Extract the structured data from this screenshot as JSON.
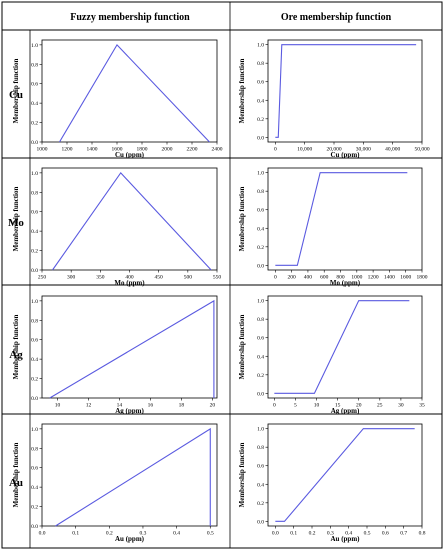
{
  "headers": {
    "fuzzy": "Fuzzy membership function",
    "ore": "Ore membership function"
  },
  "colors": {
    "line": "#5a5ae0",
    "border": "#000000",
    "divider": "#999999"
  },
  "chart_data": [
    {
      "row": "Cu",
      "panel": "fuzzy",
      "type": "line",
      "xlabel": "Cu (ppm)",
      "ylabel": "Membership function",
      "xlim": [
        1000,
        2400
      ],
      "ylim": [
        0,
        1.05
      ],
      "xticks": [
        1000,
        1200,
        1400,
        1600,
        1800,
        2000,
        2200,
        2400
      ],
      "xtick_labels": [
        "1000",
        "1200",
        "1400",
        "1600",
        "1800",
        "2000",
        "2200",
        "2400"
      ],
      "yticks": [
        0,
        0.2,
        0.4,
        0.6,
        0.8,
        1.0
      ],
      "ytick_labels": [
        "0.0",
        "0.2",
        "0.4",
        "0.6",
        "0.8",
        "1.0"
      ],
      "x": [
        1140,
        1600,
        2340
      ],
      "y": [
        0,
        1,
        0
      ]
    },
    {
      "row": "Cu",
      "panel": "ore",
      "type": "line",
      "xlabel": "Cu (ppm)",
      "ylabel": "Membership function",
      "xlim": [
        -2500,
        50000
      ],
      "ylim": [
        -0.05,
        1.05
      ],
      "xticks": [
        0,
        10000,
        20000,
        30000,
        40000,
        50000
      ],
      "xtick_labels": [
        "0",
        "10,000",
        "20,000",
        "30,000",
        "40,000",
        "50,000"
      ],
      "yticks": [
        0,
        0.2,
        0.4,
        0.6,
        0.8,
        1.0
      ],
      "ytick_labels": [
        "0.0",
        "0.2",
        "0.4",
        "0.6",
        "0.8",
        "1.0"
      ],
      "x": [
        0,
        1000,
        2200,
        48000
      ],
      "y": [
        0,
        0,
        1,
        1
      ]
    },
    {
      "row": "Mo",
      "panel": "fuzzy",
      "type": "line",
      "xlabel": "Mo (ppm)",
      "ylabel": "Membership function",
      "xlim": [
        250,
        550
      ],
      "ylim": [
        0,
        1.05
      ],
      "xticks": [
        250,
        300,
        350,
        400,
        450,
        500,
        550
      ],
      "xtick_labels": [
        "250",
        "300",
        "350",
        "400",
        "450",
        "500",
        "550"
      ],
      "yticks": [
        0,
        0.2,
        0.4,
        0.6,
        0.8,
        1.0
      ],
      "ytick_labels": [
        "0.0",
        "0.2",
        "0.4",
        "0.6",
        "0.8",
        "1.0"
      ],
      "x": [
        268,
        385,
        540
      ],
      "y": [
        0,
        1,
        0
      ]
    },
    {
      "row": "Mo",
      "panel": "ore",
      "type": "line",
      "xlabel": "Mo (ppm)",
      "ylabel": "Membership function",
      "xlim": [
        -90,
        1800
      ],
      "ylim": [
        -0.05,
        1.05
      ],
      "xticks": [
        0,
        200,
        400,
        600,
        800,
        1000,
        1200,
        1400,
        1600,
        1800
      ],
      "xtick_labels": [
        "0",
        "200",
        "400",
        "600",
        "800",
        "1000",
        "1200",
        "1400",
        "1600",
        "1800"
      ],
      "yticks": [
        0,
        0.2,
        0.4,
        0.6,
        0.8,
        1.0
      ],
      "ytick_labels": [
        "0.0",
        "0.2",
        "0.4",
        "0.6",
        "0.8",
        "1.0"
      ],
      "x": [
        0,
        270,
        550,
        1620
      ],
      "y": [
        0,
        0,
        1,
        1
      ]
    },
    {
      "row": "Ag",
      "panel": "fuzzy",
      "type": "line",
      "xlabel": "Ag (ppm)",
      "ylabel": "Membership function",
      "xlim": [
        9,
        20.3
      ],
      "ylim": [
        0,
        1.05
      ],
      "xticks": [
        10,
        12,
        14,
        16,
        18,
        20
      ],
      "xtick_labels": [
        "10",
        "12",
        "14",
        "16",
        "18",
        "20"
      ],
      "yticks": [
        0,
        0.2,
        0.4,
        0.6,
        0.8,
        1.0
      ],
      "ytick_labels": [
        "0.0",
        "0.2",
        "0.4",
        "0.6",
        "0.8",
        "1.0"
      ],
      "x": [
        9.5,
        20.1,
        20.1
      ],
      "y": [
        0,
        1,
        0
      ]
    },
    {
      "row": "Ag",
      "panel": "ore",
      "type": "line",
      "xlabel": "Ag (ppm)",
      "ylabel": "Membership function",
      "xlim": [
        -1.5,
        35
      ],
      "ylim": [
        -0.05,
        1.05
      ],
      "xticks": [
        0,
        5,
        10,
        15,
        20,
        25,
        30,
        35
      ],
      "xtick_labels": [
        "0",
        "5",
        "10",
        "15",
        "20",
        "25",
        "30",
        "35"
      ],
      "yticks": [
        0,
        0.2,
        0.4,
        0.6,
        0.8,
        1.0
      ],
      "ytick_labels": [
        "0.0",
        "0.2",
        "0.4",
        "0.6",
        "0.8",
        "1.0"
      ],
      "x": [
        0,
        9.5,
        20,
        32
      ],
      "y": [
        0,
        0,
        1,
        1
      ]
    },
    {
      "row": "Au",
      "panel": "fuzzy",
      "type": "line",
      "xlabel": "Au (ppm)",
      "ylabel": "Membership function",
      "xlim": [
        0,
        0.52
      ],
      "ylim": [
        0,
        1.05
      ],
      "xticks": [
        0,
        0.1,
        0.2,
        0.3,
        0.4,
        0.5
      ],
      "xtick_labels": [
        "0.0",
        "0.1",
        "0.2",
        "0.3",
        "0.4",
        "0.5"
      ],
      "yticks": [
        0,
        0.2,
        0.4,
        0.6,
        0.8,
        1.0
      ],
      "ytick_labels": [
        "0.0",
        "0.2",
        "0.4",
        "0.6",
        "0.8",
        "1.0"
      ],
      "x": [
        0.04,
        0.5,
        0.5
      ],
      "y": [
        0,
        1,
        0
      ]
    },
    {
      "row": "Au",
      "panel": "ore",
      "type": "line",
      "xlabel": "Au (ppm)",
      "ylabel": "Membership function",
      "xlim": [
        -0.04,
        0.8
      ],
      "ylim": [
        -0.05,
        1.05
      ],
      "xticks": [
        0,
        0.1,
        0.2,
        0.3,
        0.4,
        0.5,
        0.6,
        0.7,
        0.8
      ],
      "xtick_labels": [
        "0.0",
        "0.1",
        "0.2",
        "0.3",
        "0.4",
        "0.5",
        "0.6",
        "0.7",
        "0.8"
      ],
      "yticks": [
        0,
        0.2,
        0.4,
        0.6,
        0.8,
        1.0
      ],
      "ytick_labels": [
        "0.0",
        "0.2",
        "0.4",
        "0.6",
        "0.8",
        "1.0"
      ],
      "x": [
        0,
        0.05,
        0.48,
        0.76
      ],
      "y": [
        0,
        0,
        1,
        1
      ]
    }
  ]
}
